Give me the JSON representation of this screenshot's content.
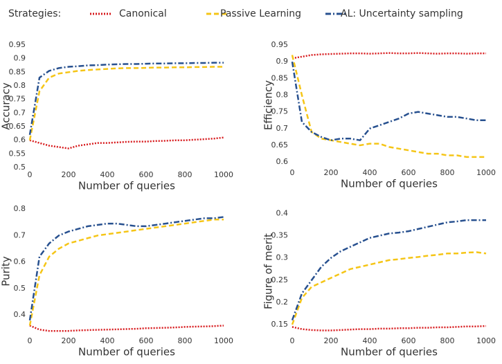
{
  "legend_title": "Strategies:",
  "chart_data": [
    {
      "type": "line",
      "xlabel": "Number of queries",
      "ylabel": "Accuracy",
      "x": [
        0,
        50,
        100,
        150,
        200,
        250,
        300,
        350,
        400,
        450,
        500,
        550,
        600,
        650,
        700,
        750,
        800,
        850,
        900,
        950,
        1000
      ],
      "xlim": [
        0,
        1000
      ],
      "xticks": [
        0,
        200,
        400,
        600,
        800,
        1000
      ],
      "ylim": [
        0.5,
        0.95
      ],
      "yticks": [
        0.5,
        0.55,
        0.6,
        0.65,
        0.7,
        0.75,
        0.8,
        0.85,
        0.9,
        0.95
      ],
      "grid": false,
      "series": [
        {
          "name": "Canonical",
          "color": "#d7191c",
          "style": "dotted",
          "values": [
            0.6,
            0.59,
            0.58,
            0.575,
            0.57,
            0.58,
            0.585,
            0.59,
            0.59,
            0.592,
            0.594,
            0.595,
            0.595,
            0.597,
            0.598,
            0.6,
            0.6,
            0.602,
            0.604,
            0.606,
            0.61
          ]
        },
        {
          "name": "Passive Learning",
          "color": "#f5c516",
          "style": "dashed",
          "values": [
            0.6,
            0.78,
            0.83,
            0.845,
            0.85,
            0.855,
            0.858,
            0.86,
            0.862,
            0.864,
            0.865,
            0.865,
            0.866,
            0.867,
            0.867,
            0.868,
            0.868,
            0.869,
            0.869,
            0.87,
            0.87
          ]
        },
        {
          "name": "AL: Uncertainty sampling",
          "color": "#27508f",
          "style": "dashdot",
          "values": [
            0.62,
            0.83,
            0.855,
            0.865,
            0.87,
            0.872,
            0.875,
            0.876,
            0.878,
            0.879,
            0.88,
            0.88,
            0.881,
            0.882,
            0.882,
            0.883,
            0.883,
            0.884,
            0.884,
            0.885,
            0.885
          ]
        }
      ]
    },
    {
      "type": "line",
      "xlabel": "Number of queries",
      "ylabel": "Efficiency",
      "x": [
        0,
        50,
        100,
        150,
        200,
        250,
        300,
        350,
        400,
        450,
        500,
        550,
        600,
        650,
        700,
        750,
        800,
        850,
        900,
        950,
        1000
      ],
      "xlim": [
        0,
        1000
      ],
      "xticks": [
        0,
        200,
        400,
        600,
        800,
        1000
      ],
      "ylim": [
        0.59,
        0.95
      ],
      "yticks": [
        0.6,
        0.65,
        0.7,
        0.75,
        0.8,
        0.85,
        0.9,
        0.95
      ],
      "grid": false,
      "series": [
        {
          "name": "Canonical",
          "color": "#d7191c",
          "style": "dotted",
          "values": [
            0.91,
            0.915,
            0.92,
            0.922,
            0.923,
            0.924,
            0.925,
            0.925,
            0.924,
            0.925,
            0.926,
            0.925,
            0.925,
            0.926,
            0.925,
            0.924,
            0.925,
            0.925,
            0.924,
            0.925,
            0.925
          ]
        },
        {
          "name": "Passive Learning",
          "color": "#f5c516",
          "style": "dashed",
          "values": [
            0.92,
            0.8,
            0.69,
            0.67,
            0.665,
            0.66,
            0.655,
            0.65,
            0.655,
            0.655,
            0.645,
            0.64,
            0.635,
            0.63,
            0.625,
            0.625,
            0.62,
            0.62,
            0.615,
            0.615,
            0.615
          ]
        },
        {
          "name": "AL: Uncertainty sampling",
          "color": "#27508f",
          "style": "dashdot",
          "values": [
            0.9,
            0.72,
            0.69,
            0.675,
            0.665,
            0.67,
            0.67,
            0.665,
            0.7,
            0.71,
            0.72,
            0.73,
            0.745,
            0.75,
            0.745,
            0.74,
            0.735,
            0.735,
            0.73,
            0.725,
            0.725
          ]
        }
      ]
    },
    {
      "type": "line",
      "xlabel": "Number of queries",
      "ylabel": "Purity",
      "x": [
        0,
        50,
        100,
        150,
        200,
        250,
        300,
        350,
        400,
        450,
        500,
        550,
        600,
        650,
        700,
        750,
        800,
        850,
        900,
        950,
        1000
      ],
      "xlim": [
        0,
        1000
      ],
      "xticks": [
        0,
        200,
        400,
        600,
        800,
        1000
      ],
      "ylim": [
        0.33,
        0.8
      ],
      "yticks": [
        0.4,
        0.5,
        0.6,
        0.7,
        0.8
      ],
      "grid": false,
      "series": [
        {
          "name": "Canonical",
          "color": "#d7191c",
          "style": "dotted",
          "values": [
            0.36,
            0.345,
            0.34,
            0.34,
            0.34,
            0.342,
            0.343,
            0.344,
            0.345,
            0.346,
            0.347,
            0.348,
            0.35,
            0.351,
            0.352,
            0.353,
            0.355,
            0.356,
            0.357,
            0.358,
            0.36
          ]
        },
        {
          "name": "Passive Learning",
          "color": "#f5c516",
          "style": "dashed",
          "values": [
            0.36,
            0.55,
            0.62,
            0.65,
            0.67,
            0.68,
            0.69,
            0.7,
            0.705,
            0.71,
            0.715,
            0.72,
            0.725,
            0.73,
            0.735,
            0.74,
            0.745,
            0.75,
            0.755,
            0.76,
            0.76
          ]
        },
        {
          "name": "AL: Uncertainty sampling",
          "color": "#27508f",
          "style": "dashdot",
          "values": [
            0.38,
            0.62,
            0.67,
            0.7,
            0.715,
            0.725,
            0.735,
            0.74,
            0.745,
            0.745,
            0.74,
            0.735,
            0.735,
            0.74,
            0.745,
            0.75,
            0.755,
            0.76,
            0.765,
            0.765,
            0.77
          ]
        }
      ]
    },
    {
      "type": "line",
      "xlabel": "Number of queries",
      "ylabel": "Figure of merit",
      "x": [
        0,
        50,
        100,
        150,
        200,
        250,
        300,
        350,
        400,
        450,
        500,
        550,
        600,
        650,
        700,
        750,
        800,
        850,
        900,
        950,
        1000
      ],
      "xlim": [
        0,
        1000
      ],
      "xticks": [
        0,
        200,
        400,
        600,
        800,
        1000
      ],
      "ylim": [
        0.13,
        0.41
      ],
      "yticks": [
        0.15,
        0.2,
        0.25,
        0.3,
        0.35,
        0.4
      ],
      "grid": false,
      "series": [
        {
          "name": "Canonical",
          "color": "#d7191c",
          "style": "dotted",
          "values": [
            0.145,
            0.14,
            0.138,
            0.137,
            0.137,
            0.138,
            0.139,
            0.14,
            0.14,
            0.141,
            0.141,
            0.142,
            0.142,
            0.143,
            0.143,
            0.144,
            0.144,
            0.145,
            0.146,
            0.146,
            0.147
          ]
        },
        {
          "name": "Passive Learning",
          "color": "#f5c516",
          "style": "dashed",
          "values": [
            0.15,
            0.21,
            0.235,
            0.245,
            0.255,
            0.265,
            0.275,
            0.28,
            0.285,
            0.29,
            0.295,
            0.297,
            0.3,
            0.302,
            0.305,
            0.307,
            0.31,
            0.31,
            0.312,
            0.313,
            0.31
          ]
        },
        {
          "name": "AL: Uncertainty sampling",
          "color": "#27508f",
          "style": "dashdot",
          "values": [
            0.16,
            0.22,
            0.25,
            0.28,
            0.3,
            0.315,
            0.325,
            0.335,
            0.345,
            0.35,
            0.355,
            0.357,
            0.36,
            0.365,
            0.37,
            0.375,
            0.38,
            0.382,
            0.385,
            0.385,
            0.385
          ]
        }
      ]
    }
  ]
}
